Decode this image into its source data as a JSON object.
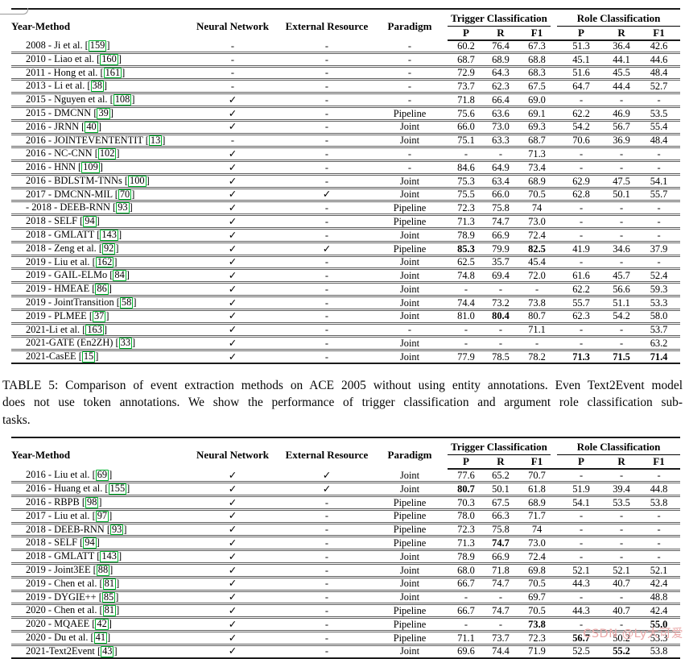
{
  "watermark": "CSDN @Ly大可爱",
  "colors": {
    "citation_box": "#00b32d",
    "watermark_pink": "#eaa9a9",
    "rule_dark": "#1b1b1b"
  },
  "headers": {
    "method": "Year-Method",
    "neural": "Neural Network",
    "external": "External Resource",
    "paradigm": "Paradigm",
    "trigger_group": "Trigger Classification",
    "role_group": "Role Classification",
    "sub": {
      "p1": "P",
      "r1": "R",
      "f1a": "F1",
      "p2": "P",
      "r2": "R",
      "f1b": "F1"
    }
  },
  "caption": {
    "lines": [
      "TABLE 5: Comparison of event extraction methods on ACE 2005 without using entity annotations. Even Text2Event model",
      "does not use token annotations. We show the performance of trigger classification and argument role classification sub-",
      "tasks."
    ]
  },
  "table1": {
    "rows": [
      {
        "method": "2008 - Ji et al.",
        "cite": "159",
        "nn": "-",
        "ext": "-",
        "paradigm": "-",
        "values": [
          "60.2",
          "76.4",
          "67.3",
          "51.3",
          "36.4",
          "42.6"
        ],
        "bold": []
      },
      {
        "method": "2010 - Liao et al.",
        "cite": "160",
        "nn": "-",
        "ext": "-",
        "paradigm": "-",
        "values": [
          "68.7",
          "68.9",
          "68.8",
          "45.1",
          "44.1",
          "44.6"
        ],
        "bold": []
      },
      {
        "method": "2011 - Hong et al.",
        "cite": "161",
        "nn": "-",
        "ext": "-",
        "paradigm": "-",
        "values": [
          "72.9",
          "64.3",
          "68.3",
          "51.6",
          "45.5",
          "48.4"
        ],
        "bold": []
      },
      {
        "method": "2013 - Li et al.",
        "cite": "38",
        "nn": "-",
        "ext": "-",
        "paradigm": "-",
        "values": [
          "73.7",
          "62.3",
          "67.5",
          "64.7",
          "44.4",
          "52.7"
        ],
        "bold": []
      },
      {
        "method": "2015 - Nguyen et al.",
        "cite": "108",
        "nn": "✓",
        "ext": "-",
        "paradigm": "-",
        "values": [
          "71.8",
          "66.4",
          "69.0",
          "-",
          "-",
          "-"
        ],
        "bold": []
      },
      {
        "method": "2015 - DMCNN",
        "cite": "39",
        "nn": "✓",
        "ext": "-",
        "paradigm": "Pipeline",
        "values": [
          "75.6",
          "63.6",
          "69.1",
          "62.2",
          "46.9",
          "53.5"
        ],
        "bold": []
      },
      {
        "method": "2016 - JRNN",
        "cite": "40",
        "nn": "✓",
        "ext": "-",
        "paradigm": "Joint",
        "values": [
          "66.0",
          "73.0",
          "69.3",
          "54.2",
          "56.7",
          "55.4"
        ],
        "bold": []
      },
      {
        "method": "2016 - JOINTEVENTENTIT",
        "cite": "13",
        "nn": "-",
        "ext": "-",
        "paradigm": "Joint",
        "values": [
          "75.1",
          "63.3",
          "68.7",
          "70.6",
          "36.9",
          "48.4"
        ],
        "bold": []
      },
      {
        "method": "2016 - NC-CNN",
        "cite": "102",
        "nn": "✓",
        "ext": "-",
        "paradigm": "-",
        "values": [
          "-",
          "-",
          "71.3",
          "-",
          "-",
          "-"
        ],
        "bold": []
      },
      {
        "method": "2016 - HNN",
        "cite": "109",
        "nn": "✓",
        "ext": "-",
        "paradigm": "-",
        "values": [
          "84.6",
          "64.9",
          "73.4",
          "-",
          "-",
          "-"
        ],
        "bold": []
      },
      {
        "method": "2016 - BDLSTM-TNNs",
        "cite": "100",
        "nn": "✓",
        "ext": "-",
        "paradigm": "Joint",
        "values": [
          "75.3",
          "63.4",
          "68.9",
          "62.9",
          "47.5",
          "54.1"
        ],
        "bold": []
      },
      {
        "method": "2017 - DMCNN-MIL",
        "cite": "70",
        "nn": "✓",
        "ext": "✓",
        "paradigm": "Joint",
        "values": [
          "75.5",
          "66.0",
          "70.5",
          "62.8",
          "50.1",
          "55.7"
        ],
        "bold": []
      },
      {
        "method": "- 2018 - DEEB-RNN",
        "cite": "93",
        "nn": "✓",
        "ext": "-",
        "paradigm": "Pipeline",
        "values": [
          "72.3",
          "75.8",
          "74",
          "-",
          "-",
          "-"
        ],
        "bold": []
      },
      {
        "method": "2018 - SELF",
        "cite": "94",
        "nn": "✓",
        "ext": "-",
        "paradigm": "Pipeline",
        "values": [
          "71.3",
          "74.7",
          "73.0",
          "-",
          "-",
          "-"
        ],
        "bold": []
      },
      {
        "method": "2018 - GMLATT",
        "cite": "143",
        "nn": "✓",
        "ext": "-",
        "paradigm": "Joint",
        "values": [
          "78.9",
          "66.9",
          "72.4",
          "-",
          "-",
          "-"
        ],
        "bold": []
      },
      {
        "method": "2018 - Zeng et al.",
        "cite": "92",
        "nn": "✓",
        "ext": "✓",
        "paradigm": "Pipeline",
        "values": [
          "85.3",
          "79.9",
          "82.5",
          "41.9",
          "34.6",
          "37.9"
        ],
        "bold": [
          0,
          2
        ]
      },
      {
        "method": "2019 - Liu et al.",
        "cite": "162",
        "nn": "✓",
        "ext": "-",
        "paradigm": "Joint",
        "values": [
          "62.5",
          "35.7",
          "45.4",
          "-",
          "-",
          "-"
        ],
        "bold": []
      },
      {
        "method": "2019 - GAIL-ELMo",
        "cite": "84",
        "nn": "✓",
        "ext": "-",
        "paradigm": "Joint",
        "values": [
          "74.8",
          "69.4",
          "72.0",
          "61.6",
          "45.7",
          "52.4"
        ],
        "bold": []
      },
      {
        "method": "2019 - HMEAE",
        "cite": "86",
        "nn": "✓",
        "ext": "-",
        "paradigm": "Joint",
        "values": [
          "-",
          "-",
          "-",
          "62.2",
          "56.6",
          "59.3"
        ],
        "bold": []
      },
      {
        "method": "2019 - JointTransition",
        "cite": "58",
        "nn": "✓",
        "ext": "-",
        "paradigm": "Joint",
        "values": [
          "74.4",
          "73.2",
          "73.8",
          "55.7",
          "51.1",
          "53.3"
        ],
        "bold": []
      },
      {
        "method": "2019 - PLMEE",
        "cite": "37",
        "nn": "✓",
        "ext": "-",
        "paradigm": "Joint",
        "values": [
          "81.0",
          "80.4",
          "80.7",
          "62.3",
          "54.2",
          "58.0"
        ],
        "bold": [
          1
        ]
      },
      {
        "method": "2021-Li et al.",
        "cite": "163",
        "nn": "✓",
        "ext": "-",
        "paradigm": "-",
        "values": [
          "-",
          "-",
          "71.1",
          "-",
          "-",
          "53.7"
        ],
        "bold": []
      },
      {
        "method": "2021-GATE (En2ZH)",
        "cite": "33",
        "nn": "✓",
        "ext": "-",
        "paradigm": "Joint",
        "values": [
          "-",
          "-",
          "-",
          "-",
          "-",
          "63.2"
        ],
        "bold": []
      },
      {
        "method": "2021-CasEE",
        "cite": "15",
        "nn": "✓",
        "ext": "-",
        "paradigm": "Joint",
        "values": [
          "77.9",
          "78.5",
          "78.2",
          "71.3",
          "71.5",
          "71.4"
        ],
        "bold": [
          3,
          4,
          5
        ]
      }
    ]
  },
  "table2": {
    "rows": [
      {
        "method": "2016 - Liu et al.",
        "cite": "69",
        "nn": "✓",
        "ext": "✓",
        "paradigm": "Joint",
        "values": [
          "77.6",
          "65.2",
          "70.7",
          "-",
          "-",
          "-"
        ],
        "bold": []
      },
      {
        "method": "2016 - Huang et al.",
        "cite": "155",
        "nn": "✓",
        "ext": "✓",
        "paradigm": "Joint",
        "values": [
          "80.7",
          "50.1",
          "61.8",
          "51.9",
          "39.4",
          "44.8"
        ],
        "bold": [
          0
        ]
      },
      {
        "method": "2016 - RBPB",
        "cite": "98",
        "nn": "✓",
        "ext": "-",
        "paradigm": "Pipeline",
        "values": [
          "70.3",
          "67.5",
          "68.9",
          "54.1",
          "53.5",
          "53.8"
        ],
        "bold": []
      },
      {
        "method": "2017 - Liu et al.",
        "cite": "97",
        "nn": "✓",
        "ext": "-",
        "paradigm": "Pipeline",
        "values": [
          "78.0",
          "66.3",
          "71.7",
          "-",
          "-",
          "-"
        ],
        "bold": []
      },
      {
        "method": "2018 - DEEB-RNN",
        "cite": "93",
        "nn": "✓",
        "ext": "-",
        "paradigm": "Pipeline",
        "values": [
          "72.3",
          "75.8",
          "74",
          "-",
          "-",
          "-"
        ],
        "bold": []
      },
      {
        "method": "2018 - SELF",
        "cite": "94",
        "nn": "✓",
        "ext": "-",
        "paradigm": "Pipeline",
        "values": [
          "71.3",
          "74.7",
          "73.0",
          "-",
          "-",
          "-"
        ],
        "bold": [
          1
        ]
      },
      {
        "method": "2018 - GMLATT",
        "cite": "143",
        "nn": "✓",
        "ext": "-",
        "paradigm": "Joint",
        "values": [
          "78.9",
          "66.9",
          "72.4",
          "-",
          "-",
          "-"
        ],
        "bold": []
      },
      {
        "method": "2019 - Joint3EE",
        "cite": "88",
        "nn": "✓",
        "ext": "-",
        "paradigm": "Joint",
        "values": [
          "68.0",
          "71.8",
          "69.8",
          "52.1",
          "52.1",
          "52.1"
        ],
        "bold": []
      },
      {
        "method": "2019 - Chen et al.",
        "cite": "81",
        "nn": "✓",
        "ext": "-",
        "paradigm": "Joint",
        "values": [
          "66.7",
          "74.7",
          "70.5",
          "44.3",
          "40.7",
          "42.4"
        ],
        "bold": []
      },
      {
        "method": "2019 - DYGIE++",
        "cite": "85",
        "nn": "✓",
        "ext": "-",
        "paradigm": "Joint",
        "values": [
          "-",
          "-",
          "69.7",
          "-",
          "-",
          "48.8"
        ],
        "bold": []
      },
      {
        "method": "2020 - Chen et al.",
        "cite": "81",
        "nn": "✓",
        "ext": "-",
        "paradigm": "Pipeline",
        "values": [
          "66.7",
          "74.7",
          "70.5",
          "44.3",
          "40.7",
          "42.4"
        ],
        "bold": []
      },
      {
        "method": "2020 - MQAEE",
        "cite": "42",
        "nn": "✓",
        "ext": "-",
        "paradigm": "Pipeline",
        "values": [
          "-",
          "-",
          "73.8",
          "-",
          "-",
          "55.0"
        ],
        "bold": [
          2,
          5
        ]
      },
      {
        "method": "2020 - Du et al.",
        "cite": "41",
        "nn": "✓",
        "ext": "-",
        "paradigm": "Pipeline",
        "values": [
          "71.1",
          "73.7",
          "72.3",
          "56.7",
          "50.2",
          "53.3"
        ],
        "bold": [
          3
        ]
      },
      {
        "method": "2021-Text2Event",
        "cite": "43",
        "nn": "✓",
        "ext": "-",
        "paradigm": "Joint",
        "values": [
          "69.6",
          "74.4",
          "71.9",
          "52.5",
          "55.2",
          "53.8"
        ],
        "bold": [
          4
        ]
      }
    ]
  }
}
